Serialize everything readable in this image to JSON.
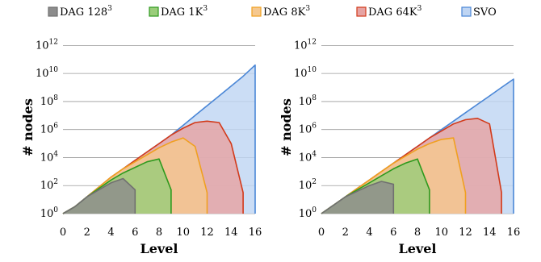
{
  "legend": [
    {
      "name": "DAG 128",
      "exp": "3",
      "stroke": "#707070",
      "fill": "#8c8c8c"
    },
    {
      "name": "DAG 1K",
      "exp": "3",
      "stroke": "#2e9a1e",
      "fill": "#9acd7a"
    },
    {
      "name": "DAG 8K",
      "exp": "3",
      "stroke": "#f0a020",
      "fill": "#f5c88f"
    },
    {
      "name": "DAG 64K",
      "exp": "3",
      "stroke": "#d23a1a",
      "fill": "#e6a3a3"
    },
    {
      "name": "SVO",
      "exp": "",
      "stroke": "#4a86d6",
      "fill": "#bfd5f3"
    }
  ],
  "chart_data": [
    {
      "type": "area",
      "xlabel": "Level",
      "ylabel": "# nodes",
      "xlim": [
        0,
        16
      ],
      "ylim_log10": [
        0,
        13
      ],
      "y_scale": "log",
      "x_ticks": [
        "0",
        "2",
        "4",
        "6",
        "8",
        "10",
        "12",
        "14",
        "16"
      ],
      "y_ticks": [
        {
          "base": "10",
          "exp": "0",
          "value": 0
        },
        {
          "base": "10",
          "exp": "2",
          "value": 2
        },
        {
          "base": "10",
          "exp": "4",
          "value": 4
        },
        {
          "base": "10",
          "exp": "6",
          "value": 6
        },
        {
          "base": "10",
          "exp": "8",
          "value": 8
        },
        {
          "base": "10",
          "exp": "10",
          "value": 10
        },
        {
          "base": "10",
          "exp": "12",
          "value": 12
        }
      ],
      "grid": true,
      "series": [
        {
          "name": "SVO",
          "x": [
            0,
            1,
            2,
            3,
            4,
            5,
            6,
            7,
            8,
            9,
            10,
            11,
            12,
            13,
            14,
            15,
            16
          ],
          "log10_y": [
            0,
            0.5,
            1.2,
            1.9,
            2.6,
            3.2,
            3.8,
            4.4,
            5.0,
            5.6,
            6.3,
            7.0,
            7.7,
            8.4,
            9.1,
            9.8,
            10.6
          ]
        },
        {
          "name": "DAG 64K",
          "x": [
            0,
            1,
            2,
            3,
            4,
            5,
            6,
            7,
            8,
            9,
            10,
            11,
            12,
            13,
            14,
            15
          ],
          "log10_y": [
            0,
            0.5,
            1.2,
            1.9,
            2.6,
            3.2,
            3.8,
            4.4,
            5.0,
            5.6,
            6.1,
            6.5,
            6.6,
            6.5,
            5.0,
            1.5
          ]
        },
        {
          "name": "DAG 8K",
          "x": [
            0,
            1,
            2,
            3,
            4,
            5,
            6,
            7,
            8,
            9,
            10,
            11,
            12
          ],
          "log10_y": [
            0,
            0.5,
            1.2,
            1.9,
            2.6,
            3.2,
            3.7,
            4.2,
            4.7,
            5.1,
            5.4,
            4.8,
            1.5
          ]
        },
        {
          "name": "DAG 1K",
          "x": [
            0,
            1,
            2,
            3,
            4,
            5,
            6,
            7,
            8,
            9
          ],
          "log10_y": [
            0,
            0.5,
            1.2,
            1.8,
            2.4,
            2.9,
            3.3,
            3.7,
            3.9,
            1.7
          ]
        },
        {
          "name": "DAG 128",
          "x": [
            0,
            1,
            2,
            3,
            4,
            5,
            6
          ],
          "log10_y": [
            0,
            0.5,
            1.2,
            1.7,
            2.2,
            2.5,
            1.7
          ]
        }
      ]
    },
    {
      "type": "area",
      "xlabel": "Level",
      "ylabel": "# nodes",
      "xlim": [
        0,
        16
      ],
      "ylim_log10": [
        0,
        13
      ],
      "y_scale": "log",
      "x_ticks": [
        "0",
        "2",
        "4",
        "6",
        "8",
        "10",
        "12",
        "14",
        "16"
      ],
      "y_ticks": [
        {
          "base": "10",
          "exp": "0",
          "value": 0
        },
        {
          "base": "10",
          "exp": "2",
          "value": 2
        },
        {
          "base": "10",
          "exp": "4",
          "value": 4
        },
        {
          "base": "10",
          "exp": "6",
          "value": 6
        },
        {
          "base": "10",
          "exp": "8",
          "value": 8
        },
        {
          "base": "10",
          "exp": "10",
          "value": 10
        },
        {
          "base": "10",
          "exp": "12",
          "value": 12
        }
      ],
      "grid": true,
      "series": [
        {
          "name": "SVO",
          "x": [
            0,
            1,
            2,
            3,
            4,
            5,
            6,
            7,
            8,
            9,
            10,
            11,
            12,
            13,
            14,
            15,
            16
          ],
          "log10_y": [
            0,
            0.6,
            1.2,
            1.8,
            2.4,
            3.0,
            3.6,
            4.2,
            4.8,
            5.4,
            6.0,
            6.6,
            7.2,
            7.8,
            8.4,
            9.0,
            9.6
          ]
        },
        {
          "name": "DAG 64K",
          "x": [
            0,
            1,
            2,
            3,
            4,
            5,
            6,
            7,
            8,
            9,
            10,
            11,
            12,
            13,
            14,
            15
          ],
          "log10_y": [
            0,
            0.6,
            1.2,
            1.8,
            2.4,
            3.0,
            3.6,
            4.2,
            4.8,
            5.4,
            5.9,
            6.4,
            6.7,
            6.8,
            6.4,
            1.5
          ]
        },
        {
          "name": "DAG 8K",
          "x": [
            0,
            1,
            2,
            3,
            4,
            5,
            6,
            7,
            8,
            9,
            10,
            11,
            12
          ],
          "log10_y": [
            0,
            0.6,
            1.2,
            1.8,
            2.4,
            3.0,
            3.6,
            4.1,
            4.6,
            5.0,
            5.3,
            5.4,
            1.5
          ]
        },
        {
          "name": "DAG 1K",
          "x": [
            0,
            1,
            2,
            3,
            4,
            5,
            6,
            7,
            8,
            9
          ],
          "log10_y": [
            0,
            0.6,
            1.2,
            1.7,
            2.2,
            2.7,
            3.2,
            3.6,
            3.9,
            1.7
          ]
        },
        {
          "name": "DAG 128",
          "x": [
            0,
            1,
            2,
            3,
            4,
            5,
            6
          ],
          "log10_y": [
            0,
            0.6,
            1.2,
            1.6,
            2.0,
            2.3,
            2.1
          ]
        }
      ]
    }
  ]
}
